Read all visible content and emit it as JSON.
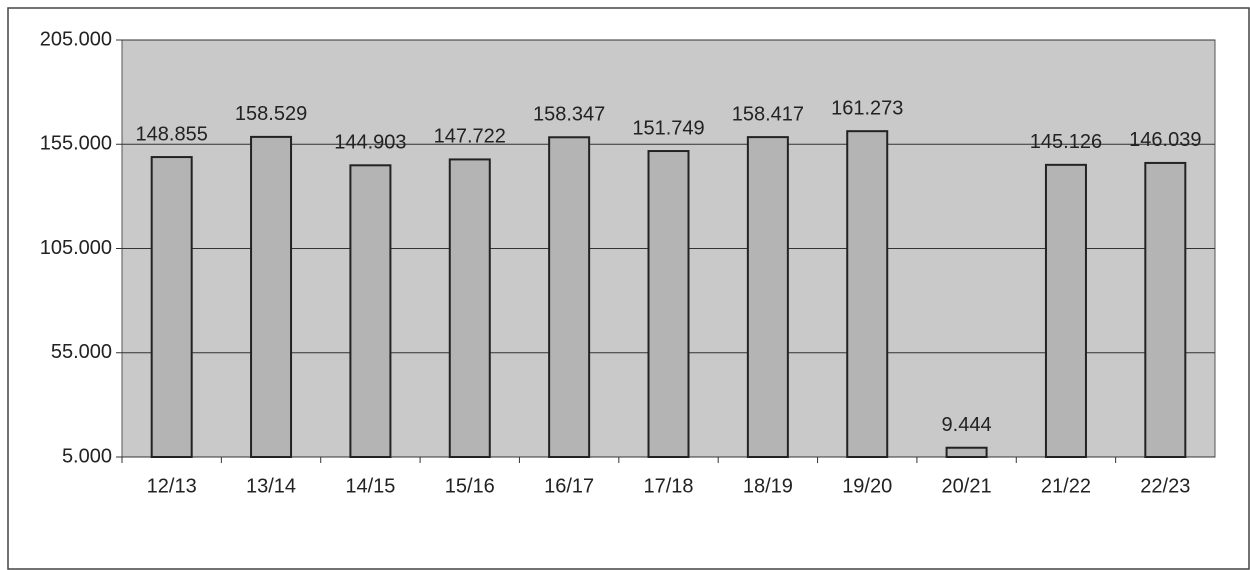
{
  "chart_data": {
    "type": "bar",
    "categories": [
      "12/13",
      "13/14",
      "14/15",
      "15/16",
      "16/17",
      "17/18",
      "18/19",
      "19/20",
      "20/21",
      "21/22",
      "22/23"
    ],
    "values": [
      148855,
      158529,
      144903,
      147722,
      158347,
      151749,
      158417,
      161273,
      9444,
      145126,
      146039
    ],
    "value_labels": [
      "148.855",
      "158.529",
      "144.903",
      "147.722",
      "158.347",
      "151.749",
      "158.417",
      "161.273",
      "9.444",
      "145.126",
      "146.039"
    ],
    "color": "#b4b4b4",
    "ylim": [
      5000,
      205000
    ],
    "yticks": [
      {
        "value": 5000,
        "label": "5.000"
      },
      {
        "value": 55000,
        "label": "55.000"
      },
      {
        "value": 105000,
        "label": "105.000"
      },
      {
        "value": 155000,
        "label": "155.000"
      },
      {
        "value": 205000,
        "label": "205.000"
      }
    ],
    "grid": true
  }
}
